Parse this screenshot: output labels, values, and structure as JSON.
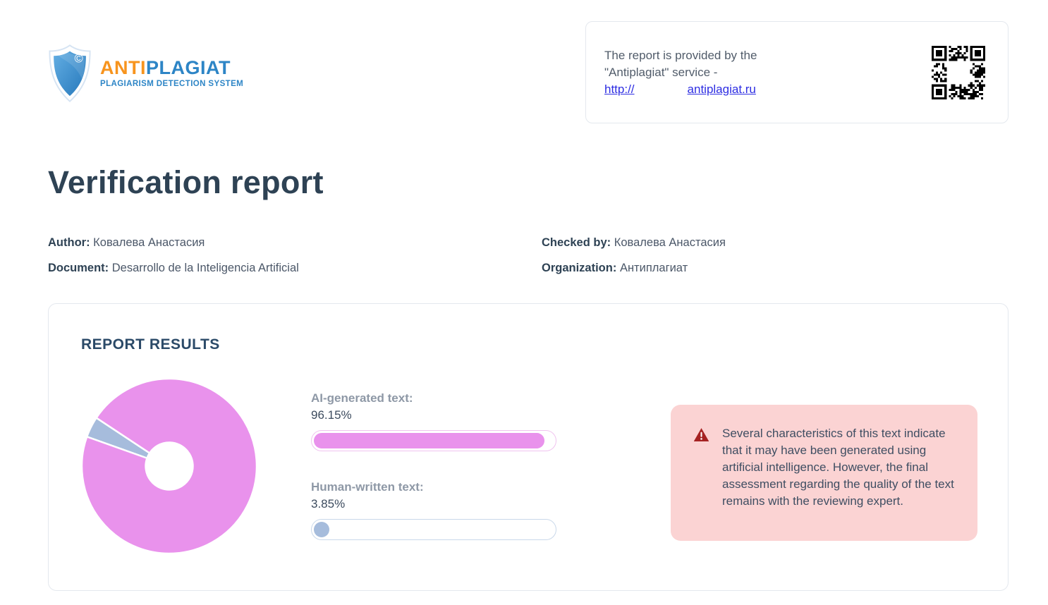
{
  "brand": {
    "name_part1": "ANTI",
    "name_part2": "PLAGIAT",
    "subtitle": "PLAGIARISM DETECTION SYSTEM",
    "shield_symbol": "©",
    "colors": {
      "orange": "#f7941e",
      "blue": "#2d85c6",
      "shield_light": "#54a3dd",
      "shield_dark": "#2678bb"
    }
  },
  "provider_card": {
    "line1": "The report is provided by the",
    "line2": "\"Antiplagiat\" service -",
    "link_prefix": "http://",
    "link_domain": "antiplagiat.ru",
    "qr_icon": "qr-code-icon"
  },
  "page_title": "Verification report",
  "meta": {
    "author_label": "Author:",
    "author_value": "Ковалева Анастасия",
    "checked_by_label": "Checked by:",
    "checked_by_value": "Ковалева Анастасия",
    "document_label": "Document:",
    "document_value": "Desarrollo de la Inteligencia Artificial",
    "organization_label": "Organization:",
    "organization_value": "Антиплагиат"
  },
  "report_results": {
    "section_title": "REPORT RESULTS",
    "ai_label": "AI-generated text:",
    "ai_value": "96.15%",
    "human_label": "Human-written text:",
    "human_value": "3.85%",
    "warning": {
      "icon": "warning-triangle-icon",
      "text": "Several characteristics of this text indicate that it may have been generated using artificial intelligence. However, the final assessment regarding the quality of the text remains with the reviewing expert."
    }
  },
  "chart_data": {
    "type": "pie",
    "title": "REPORT RESULTS",
    "categories": [
      "AI-generated text",
      "Human-written text"
    ],
    "values": [
      96.15,
      3.85
    ],
    "colors": [
      "#e992ec",
      "#a6bcdc"
    ],
    "donut_hole_ratio": 0.27,
    "start_angle_deg": 146.5,
    "slice_gap_color": "#ffffff",
    "legend_position": "none"
  },
  "status_colors": {
    "ai_pink": "#e992ec",
    "ai_pink_border": "#f0c3ef",
    "human_blue": "#a6bcdc",
    "human_blue_border": "#c9d8ea",
    "warning_background": "#fbd3d3",
    "warning_red": "#a52222",
    "link_blue": "#2d2de2",
    "heading_dark": "#2e4254"
  }
}
